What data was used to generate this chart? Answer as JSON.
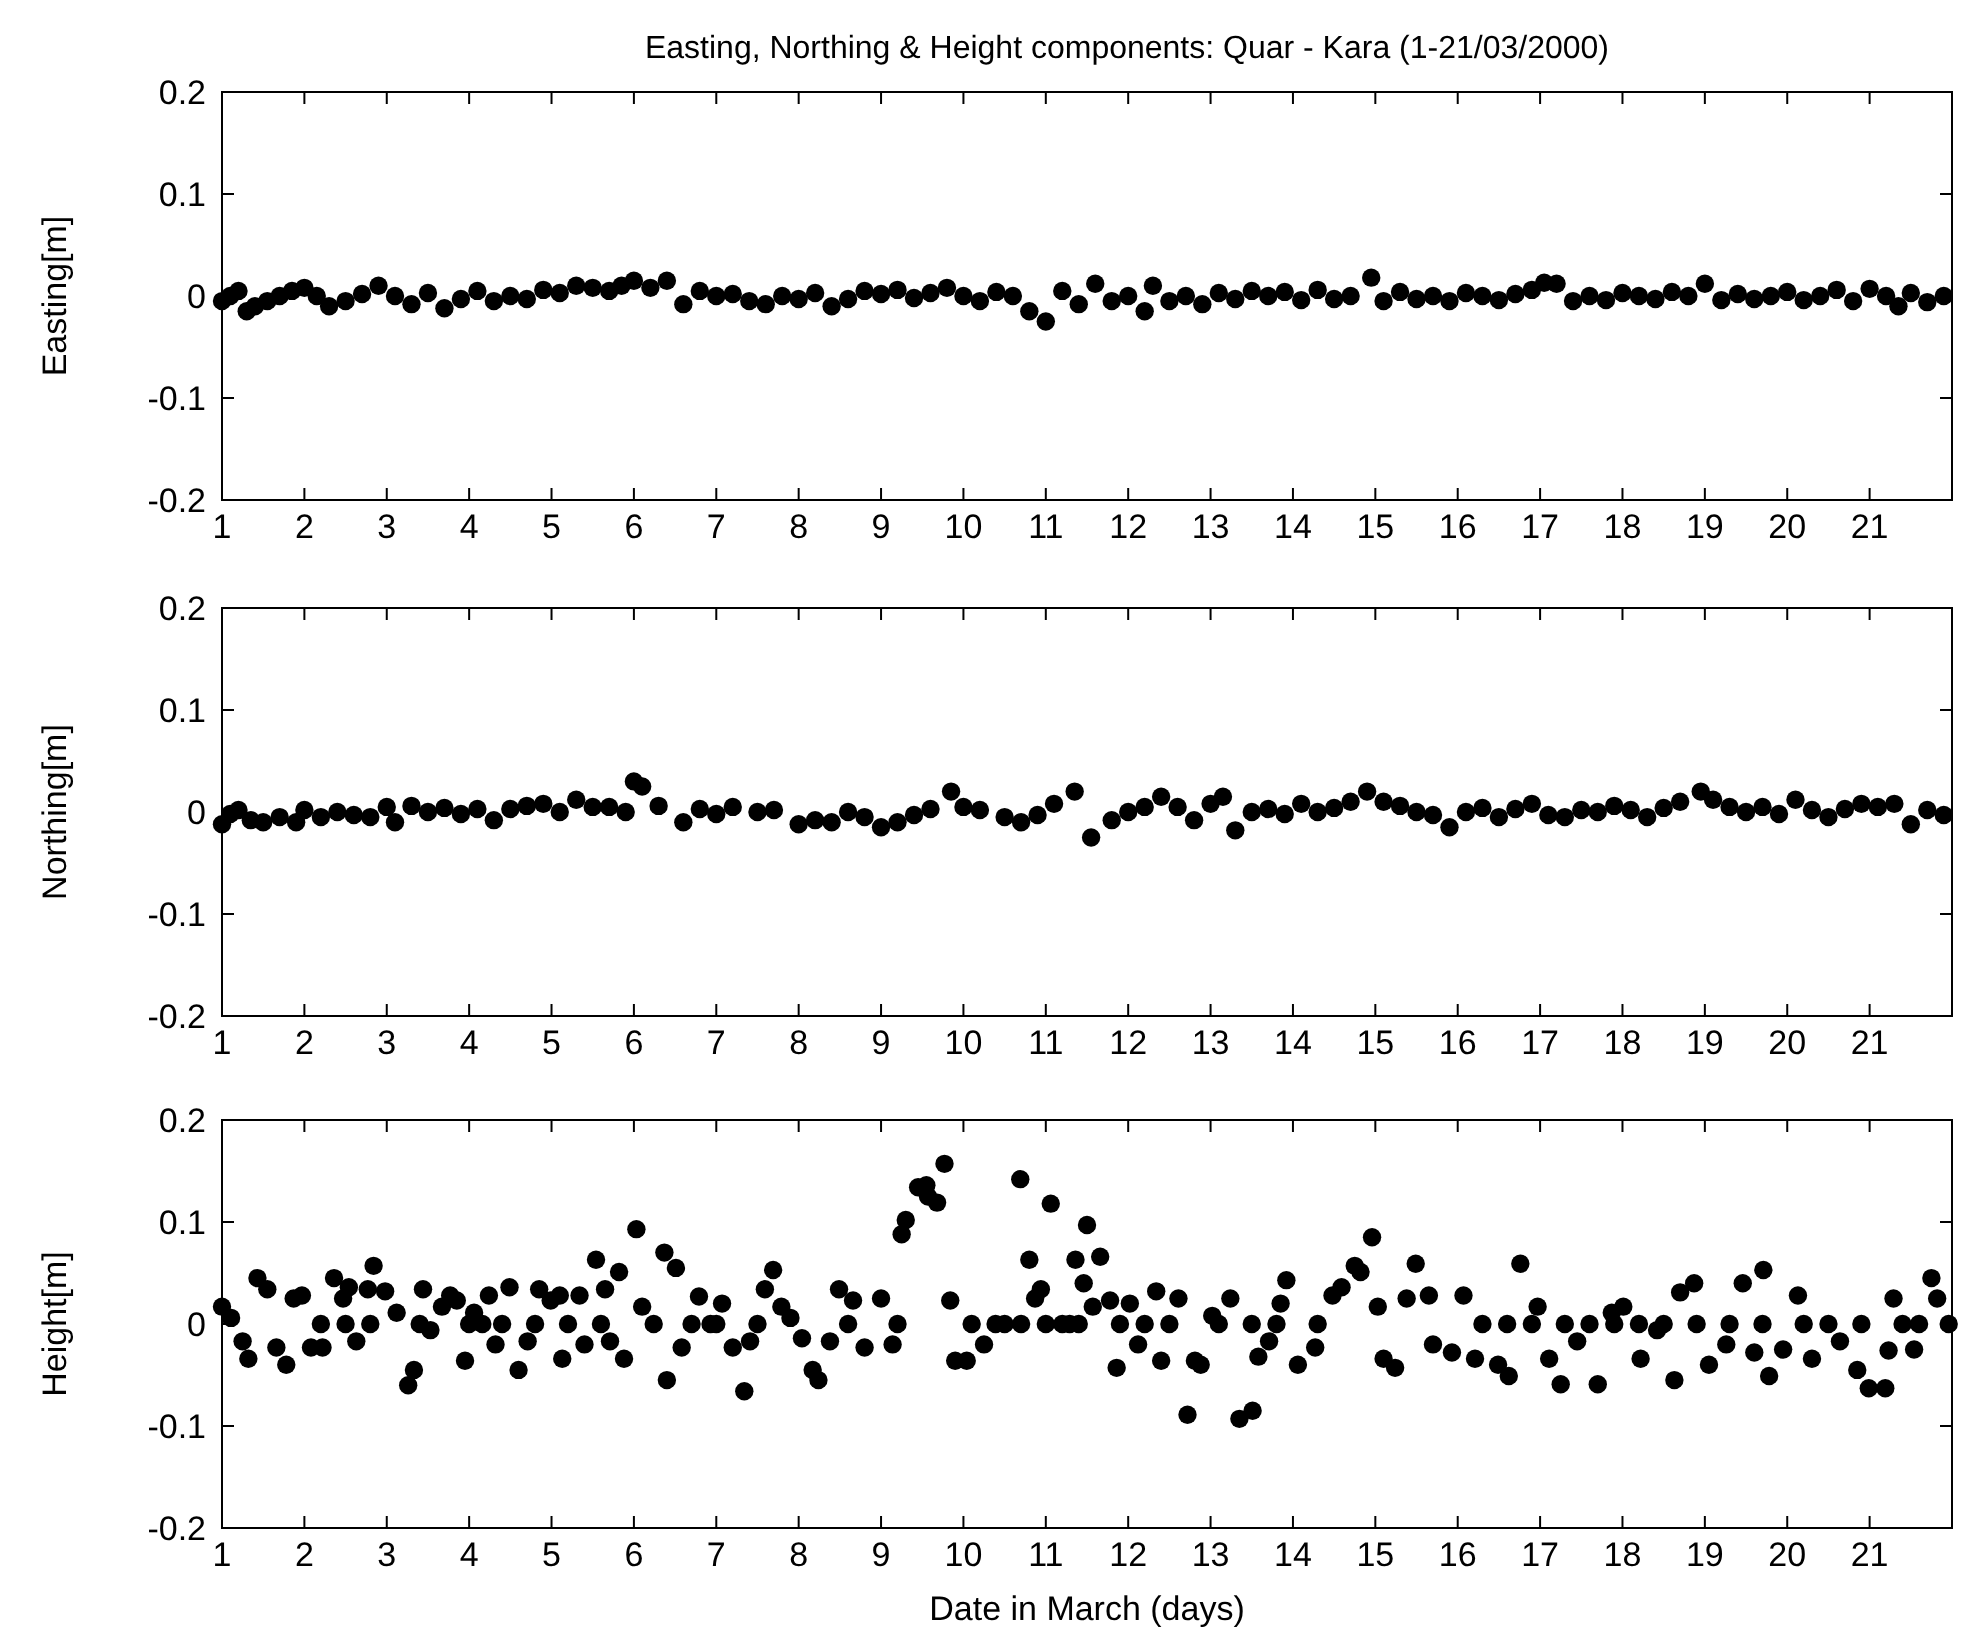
{
  "chart_data": [
    {
      "type": "scatter",
      "title": "Easting, Northing & Height components: Quar - Kara (1-21/03/2000)",
      "ylabel": "Easting[m]",
      "xlim": [
        1,
        22
      ],
      "xticks": [
        1,
        2,
        3,
        4,
        5,
        6,
        7,
        8,
        9,
        10,
        11,
        12,
        13,
        14,
        15,
        16,
        17,
        18,
        19,
        20,
        21
      ],
      "ylim": [
        -0.2,
        0.2
      ],
      "yticks": [
        -0.2,
        -0.1,
        0,
        0.1,
        0.2
      ],
      "grid": false,
      "marker": "circle",
      "series": [
        {
          "color": "#000000",
          "x": [
            1.0,
            1.1,
            1.2,
            1.3,
            1.4,
            1.55,
            1.7,
            1.85,
            2.0,
            2.15,
            2.3,
            2.5,
            2.7,
            2.9,
            3.1,
            3.3,
            3.5,
            3.7,
            3.9,
            4.1,
            4.3,
            4.5,
            4.7,
            4.9,
            5.1,
            5.3,
            5.5,
            5.7,
            5.85,
            6.0,
            6.2,
            6.4,
            6.6,
            6.8,
            7.0,
            7.2,
            7.4,
            7.6,
            7.8,
            8.0,
            8.2,
            8.4,
            8.6,
            8.8,
            9.0,
            9.2,
            9.4,
            9.6,
            9.8,
            10.0,
            10.2,
            10.4,
            10.6,
            10.8,
            11.0,
            11.2,
            11.4,
            11.6,
            11.8,
            12.0,
            12.2,
            12.3,
            12.5,
            12.7,
            12.9,
            13.1,
            13.3,
            13.5,
            13.7,
            13.9,
            14.1,
            14.3,
            14.5,
            14.7,
            14.95,
            15.1,
            15.3,
            15.5,
            15.7,
            15.9,
            16.1,
            16.3,
            16.5,
            16.7,
            16.9,
            17.05,
            17.2,
            17.4,
            17.6,
            17.8,
            18.0,
            18.2,
            18.4,
            18.6,
            18.8,
            19.0,
            19.2,
            19.4,
            19.6,
            19.8,
            20.0,
            20.2,
            20.4,
            20.6,
            20.8,
            21.0,
            21.2,
            21.35,
            21.5,
            21.7,
            21.9
          ],
          "values": [
            -0.005,
            0,
            0.005,
            -0.015,
            -0.01,
            -0.005,
            0,
            0.005,
            0.008,
            0,
            -0.01,
            -0.005,
            0.002,
            0.01,
            0,
            -0.008,
            0.003,
            -0.012,
            -0.003,
            0.005,
            -0.005,
            0,
            -0.003,
            0.006,
            0.003,
            0.01,
            0.008,
            0.005,
            0.01,
            0.015,
            0.008,
            0.015,
            -0.008,
            0.005,
            0,
            0.002,
            -0.005,
            -0.008,
            0,
            -0.003,
            0.003,
            -0.01,
            -0.003,
            0.005,
            0.002,
            0.006,
            -0.002,
            0.003,
            0.008,
            0,
            -0.005,
            0.004,
            0,
            -0.015,
            -0.025,
            0.005,
            -0.008,
            0.012,
            -0.005,
            0,
            -0.015,
            0.01,
            -0.005,
            0,
            -0.008,
            0.003,
            -0.003,
            0.005,
            0,
            0.004,
            -0.004,
            0.006,
            -0.003,
            0,
            0.018,
            -0.005,
            0.004,
            -0.003,
            0,
            -0.005,
            0.003,
            0,
            -0.004,
            0.002,
            0.006,
            0.013,
            0.012,
            -0.005,
            0,
            -0.004,
            0.003,
            0,
            -0.003,
            0.004,
            0,
            0.012,
            -0.004,
            0.002,
            -0.003,
            0,
            0.004,
            -0.004,
            0,
            0.006,
            -0.005,
            0.007,
            0,
            -0.01,
            0.003,
            -0.006,
            0
          ]
        }
      ]
    },
    {
      "type": "scatter",
      "ylabel": "Northing[m]",
      "xlim": [
        1,
        22
      ],
      "xticks": [
        1,
        2,
        3,
        4,
        5,
        6,
        7,
        8,
        9,
        10,
        11,
        12,
        13,
        14,
        15,
        16,
        17,
        18,
        19,
        20,
        21
      ],
      "ylim": [
        -0.2,
        0.2
      ],
      "yticks": [
        -0.2,
        -0.1,
        0,
        0.1,
        0.2
      ],
      "grid": false,
      "marker": "circle",
      "series": [
        {
          "color": "#000000",
          "x": [
            1.0,
            1.1,
            1.2,
            1.35,
            1.5,
            1.7,
            1.9,
            2.0,
            2.2,
            2.4,
            2.6,
            2.8,
            3.0,
            3.1,
            3.3,
            3.5,
            3.7,
            3.9,
            4.1,
            4.3,
            4.5,
            4.7,
            4.9,
            5.1,
            5.3,
            5.5,
            5.7,
            5.9,
            6.0,
            6.1,
            6.3,
            6.6,
            6.8,
            7.0,
            7.2,
            7.5,
            7.7,
            8.0,
            8.2,
            8.4,
            8.6,
            8.8,
            9.0,
            9.2,
            9.4,
            9.6,
            9.85,
            10.0,
            10.2,
            10.5,
            10.7,
            10.9,
            11.1,
            11.35,
            11.55,
            11.8,
            12.0,
            12.2,
            12.4,
            12.6,
            12.8,
            13.0,
            13.15,
            13.3,
            13.5,
            13.7,
            13.9,
            14.1,
            14.3,
            14.5,
            14.7,
            14.9,
            15.1,
            15.3,
            15.5,
            15.7,
            15.9,
            16.1,
            16.3,
            16.5,
            16.7,
            16.9,
            17.1,
            17.3,
            17.5,
            17.7,
            17.9,
            18.1,
            18.3,
            18.5,
            18.7,
            18.95,
            19.1,
            19.3,
            19.5,
            19.7,
            19.9,
            20.1,
            20.3,
            20.5,
            20.7,
            20.9,
            21.1,
            21.3,
            21.5,
            21.7,
            21.9
          ],
          "values": [
            -0.012,
            -0.002,
            0.002,
            -0.008,
            -0.01,
            -0.005,
            -0.01,
            0.002,
            -0.005,
            0,
            -0.003,
            -0.005,
            0.005,
            -0.01,
            0.006,
            0,
            0.004,
            -0.002,
            0.003,
            -0.008,
            0.003,
            0.006,
            0.008,
            0,
            0.012,
            0.005,
            0.005,
            0,
            0.03,
            0.025,
            0.006,
            -0.01,
            0.003,
            -0.002,
            0.005,
            0,
            0.002,
            -0.012,
            -0.008,
            -0.01,
            0,
            -0.005,
            -0.015,
            -0.01,
            -0.003,
            0.003,
            0.02,
            0.005,
            0.002,
            -0.005,
            -0.01,
            -0.003,
            0.008,
            0.02,
            -0.025,
            -0.008,
            0,
            0.005,
            0.015,
            0.005,
            -0.008,
            0.008,
            0.015,
            -0.018,
            0,
            0.003,
            -0.002,
            0.008,
            0,
            0.004,
            0.01,
            0.02,
            0.01,
            0.006,
            0,
            -0.003,
            -0.015,
            0,
            0.004,
            -0.005,
            0.003,
            0.008,
            -0.003,
            -0.005,
            0.002,
            0,
            0.006,
            0.002,
            -0.005,
            0.004,
            0.01,
            0.02,
            0.012,
            0.005,
            0,
            0.005,
            -0.002,
            0.012,
            0.002,
            -0.005,
            0.003,
            0.008,
            0.005,
            0.008,
            -0.012,
            0.002,
            -0.003
          ]
        }
      ]
    },
    {
      "type": "scatter",
      "ylabel": "Height[m]",
      "xlabel": "Date in March (days)",
      "xlim": [
        1,
        22
      ],
      "xticks": [
        1,
        2,
        3,
        4,
        5,
        6,
        7,
        8,
        9,
        10,
        11,
        12,
        13,
        14,
        15,
        16,
        17,
        18,
        19,
        20,
        21
      ],
      "ylim": [
        -0.2,
        0.2
      ],
      "yticks": [
        -0.2,
        -0.1,
        0,
        0.1,
        0.2
      ],
      "grid": false,
      "marker": "circle",
      "series": [
        {
          "color": "#000000",
          "x": [
            1.0,
            1.11,
            1.25,
            1.32,
            1.43,
            1.55,
            1.66,
            1.78,
            1.87,
            1.97,
            2.08,
            2.22,
            2.36,
            2.47,
            2.54,
            2.63,
            2.77,
            2.84,
            2.98,
            3.12,
            3.26,
            3.33,
            3.44,
            3.53,
            3.67,
            3.77,
            3.85,
            3.95,
            4.06,
            4.16,
            4.24,
            4.32,
            4.49,
            4.6,
            4.71,
            4.85,
            4.99,
            5.1,
            5.13,
            5.34,
            5.4,
            5.54,
            5.65,
            5.71,
            5.82,
            5.88,
            6.03,
            6.1,
            6.24,
            6.37,
            6.4,
            6.51,
            6.58,
            6.79,
            6.93,
            7.07,
            7.2,
            7.34,
            7.41,
            7.59,
            7.69,
            7.79,
            7.9,
            8.04,
            8.17,
            8.24,
            8.38,
            8.49,
            8.66,
            8.8,
            9.0,
            9.14,
            9.25,
            9.3,
            9.45,
            9.55,
            9.57,
            9.68,
            9.77,
            9.84,
            9.9,
            10.04,
            10.25,
            10.39,
            10.69,
            10.8,
            10.87,
            10.94,
            11.06,
            11.29,
            11.36,
            11.46,
            11.5,
            11.57,
            11.66,
            11.78,
            11.86,
            12.02,
            12.12,
            12.34,
            12.4,
            12.61,
            12.72,
            12.81,
            12.88,
            13.02,
            13.24,
            13.35,
            13.51,
            13.58,
            13.71,
            13.85,
            13.92,
            14.06,
            14.27,
            14.48,
            14.59,
            14.75,
            14.82,
            14.96,
            15.03,
            15.1,
            15.24,
            15.38,
            15.49,
            15.65,
            15.7,
            15.93,
            16.07,
            16.21,
            16.49,
            16.62,
            16.76,
            16.97,
            17.11,
            17.25,
            17.45,
            17.7,
            17.87,
            18.01,
            18.22,
            18.42,
            18.63,
            18.7,
            18.87,
            19.05,
            19.26,
            19.46,
            19.6,
            19.71,
            19.78,
            19.95,
            20.13,
            20.3,
            20.64,
            20.85,
            20.99,
            21.19,
            21.23,
            21.29,
            21.54,
            21.75,
            21.82,
            21.96,
            2.2,
            2.5,
            2.8,
            3.4,
            4.0,
            4.4,
            4.8,
            5.2,
            5.6,
            6.7,
            7.0,
            7.5,
            8.6,
            9.2,
            10.1,
            10.5,
            10.7,
            11.0,
            11.2,
            11.4,
            11.9,
            12.2,
            12.5,
            13.1,
            13.5,
            13.8,
            14.3,
            16.3,
            16.6,
            16.9,
            17.3,
            17.6,
            17.9,
            18.2,
            18.5,
            18.9,
            19.3,
            19.7,
            20.2,
            20.5,
            20.9,
            21.4,
            21.6
          ],
          "values": [
            0.017,
            0.006,
            -0.017,
            -0.034,
            0.045,
            0.034,
            -0.023,
            -0.04,
            0.025,
            0.028,
            -0.023,
            -0.023,
            0.045,
            0.025,
            0.036,
            -0.017,
            0.034,
            0.057,
            0.032,
            0.011,
            -0.06,
            -0.045,
            0.034,
            -0.006,
            0.017,
            0.028,
            0.023,
            -0.036,
            0.011,
            0,
            0.028,
            -0.02,
            0.036,
            -0.045,
            -0.017,
            0.034,
            0.023,
            0.028,
            -0.034,
            0.028,
            -0.02,
            0.063,
            0.034,
            -0.017,
            0.051,
            -0.034,
            0.093,
            0.017,
            0,
            0.07,
            -0.055,
            0.055,
            -0.023,
            0.027,
            0,
            0.02,
            -0.023,
            -0.066,
            -0.017,
            0.034,
            0.053,
            0.017,
            0.006,
            -0.014,
            -0.045,
            -0.055,
            -0.017,
            0.034,
            0.023,
            -0.023,
            0.025,
            -0.02,
            0.088,
            0.102,
            0.134,
            0.136,
            0.125,
            0.119,
            0.157,
            0.023,
            -0.036,
            -0.036,
            -0.02,
            0,
            0.142,
            0.063,
            0.025,
            0.034,
            0.118,
            0,
            0.063,
            0.04,
            0.097,
            0.017,
            0.066,
            0.023,
            -0.043,
            0.02,
            -0.02,
            0.032,
            -0.036,
            0.025,
            -0.089,
            -0.036,
            -0.04,
            0.008,
            0.025,
            -0.093,
            -0.085,
            -0.032,
            -0.017,
            0.02,
            0.043,
            -0.04,
            -0.023,
            0.028,
            0.036,
            0.057,
            0.051,
            0.085,
            0.017,
            -0.034,
            -0.043,
            0.025,
            0.059,
            0.028,
            -0.02,
            -0.028,
            0.028,
            -0.034,
            -0.04,
            -0.051,
            0.059,
            0.017,
            -0.034,
            -0.059,
            -0.017,
            -0.059,
            0.011,
            0.017,
            -0.034,
            -0.006,
            -0.055,
            0.031,
            0.04,
            -0.04,
            -0.02,
            0.04,
            -0.028,
            0.053,
            -0.051,
            -0.025,
            0.028,
            -0.034,
            -0.017,
            -0.045,
            -0.063,
            -0.063,
            -0.026,
            0.025,
            -0.025,
            0.045,
            0.025,
            0,
            0,
            0,
            0,
            0,
            0,
            0,
            0,
            0,
            0,
            0,
            0,
            0,
            0,
            0,
            0,
            0,
            0,
            0,
            0,
            0,
            0,
            0,
            0,
            0,
            0,
            0,
            0,
            0,
            0,
            0,
            0,
            0,
            0,
            0,
            0,
            0,
            0,
            0,
            0,
            0,
            0,
            0,
            0
          ]
        }
      ]
    }
  ]
}
